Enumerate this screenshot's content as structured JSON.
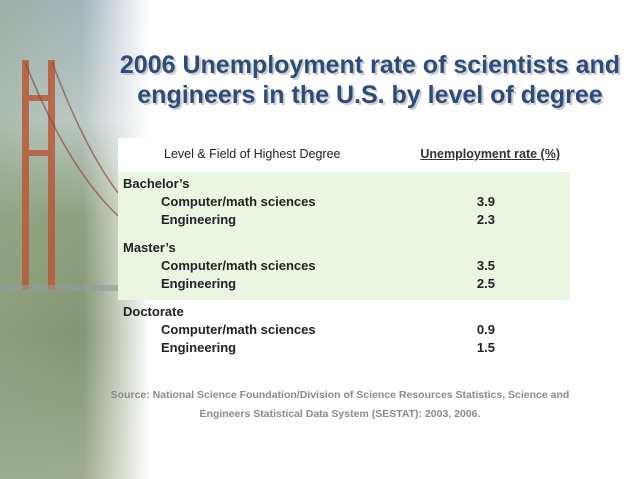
{
  "title": {
    "line1": "2006 Unemployment rate of scientists and",
    "line2": "engineers in the U.S. by level of degree"
  },
  "table": {
    "headers": [
      "Level & Field of Highest Degree",
      "Unemployment rate (%)"
    ],
    "groups": [
      {
        "degree": "Bachelor’s",
        "rows": [
          {
            "field": "Computer/math sciences",
            "rate": "3.9"
          },
          {
            "field": "Engineering",
            "rate": "2.3"
          }
        ]
      },
      {
        "degree": "Master’s",
        "rows": [
          {
            "field": "Computer/math sciences",
            "rate": "3.5"
          },
          {
            "field": "Engineering",
            "rate": "2.5"
          }
        ]
      },
      {
        "degree": "Doctorate",
        "rows": [
          {
            "field": "Computer/math sciences",
            "rate": "0.9"
          },
          {
            "field": "Engineering",
            "rate": "1.5"
          }
        ]
      }
    ]
  },
  "source": {
    "line1": "Source: National Science Foundation/Division of Science Resources Statistics, Science and",
    "line2": "Engineers Statistical Data System (SESTAT): 2003, 2006."
  },
  "colors": {
    "title": "#2e4c7a",
    "shade": "#eaf6e2",
    "source": "#8a8a8a"
  }
}
